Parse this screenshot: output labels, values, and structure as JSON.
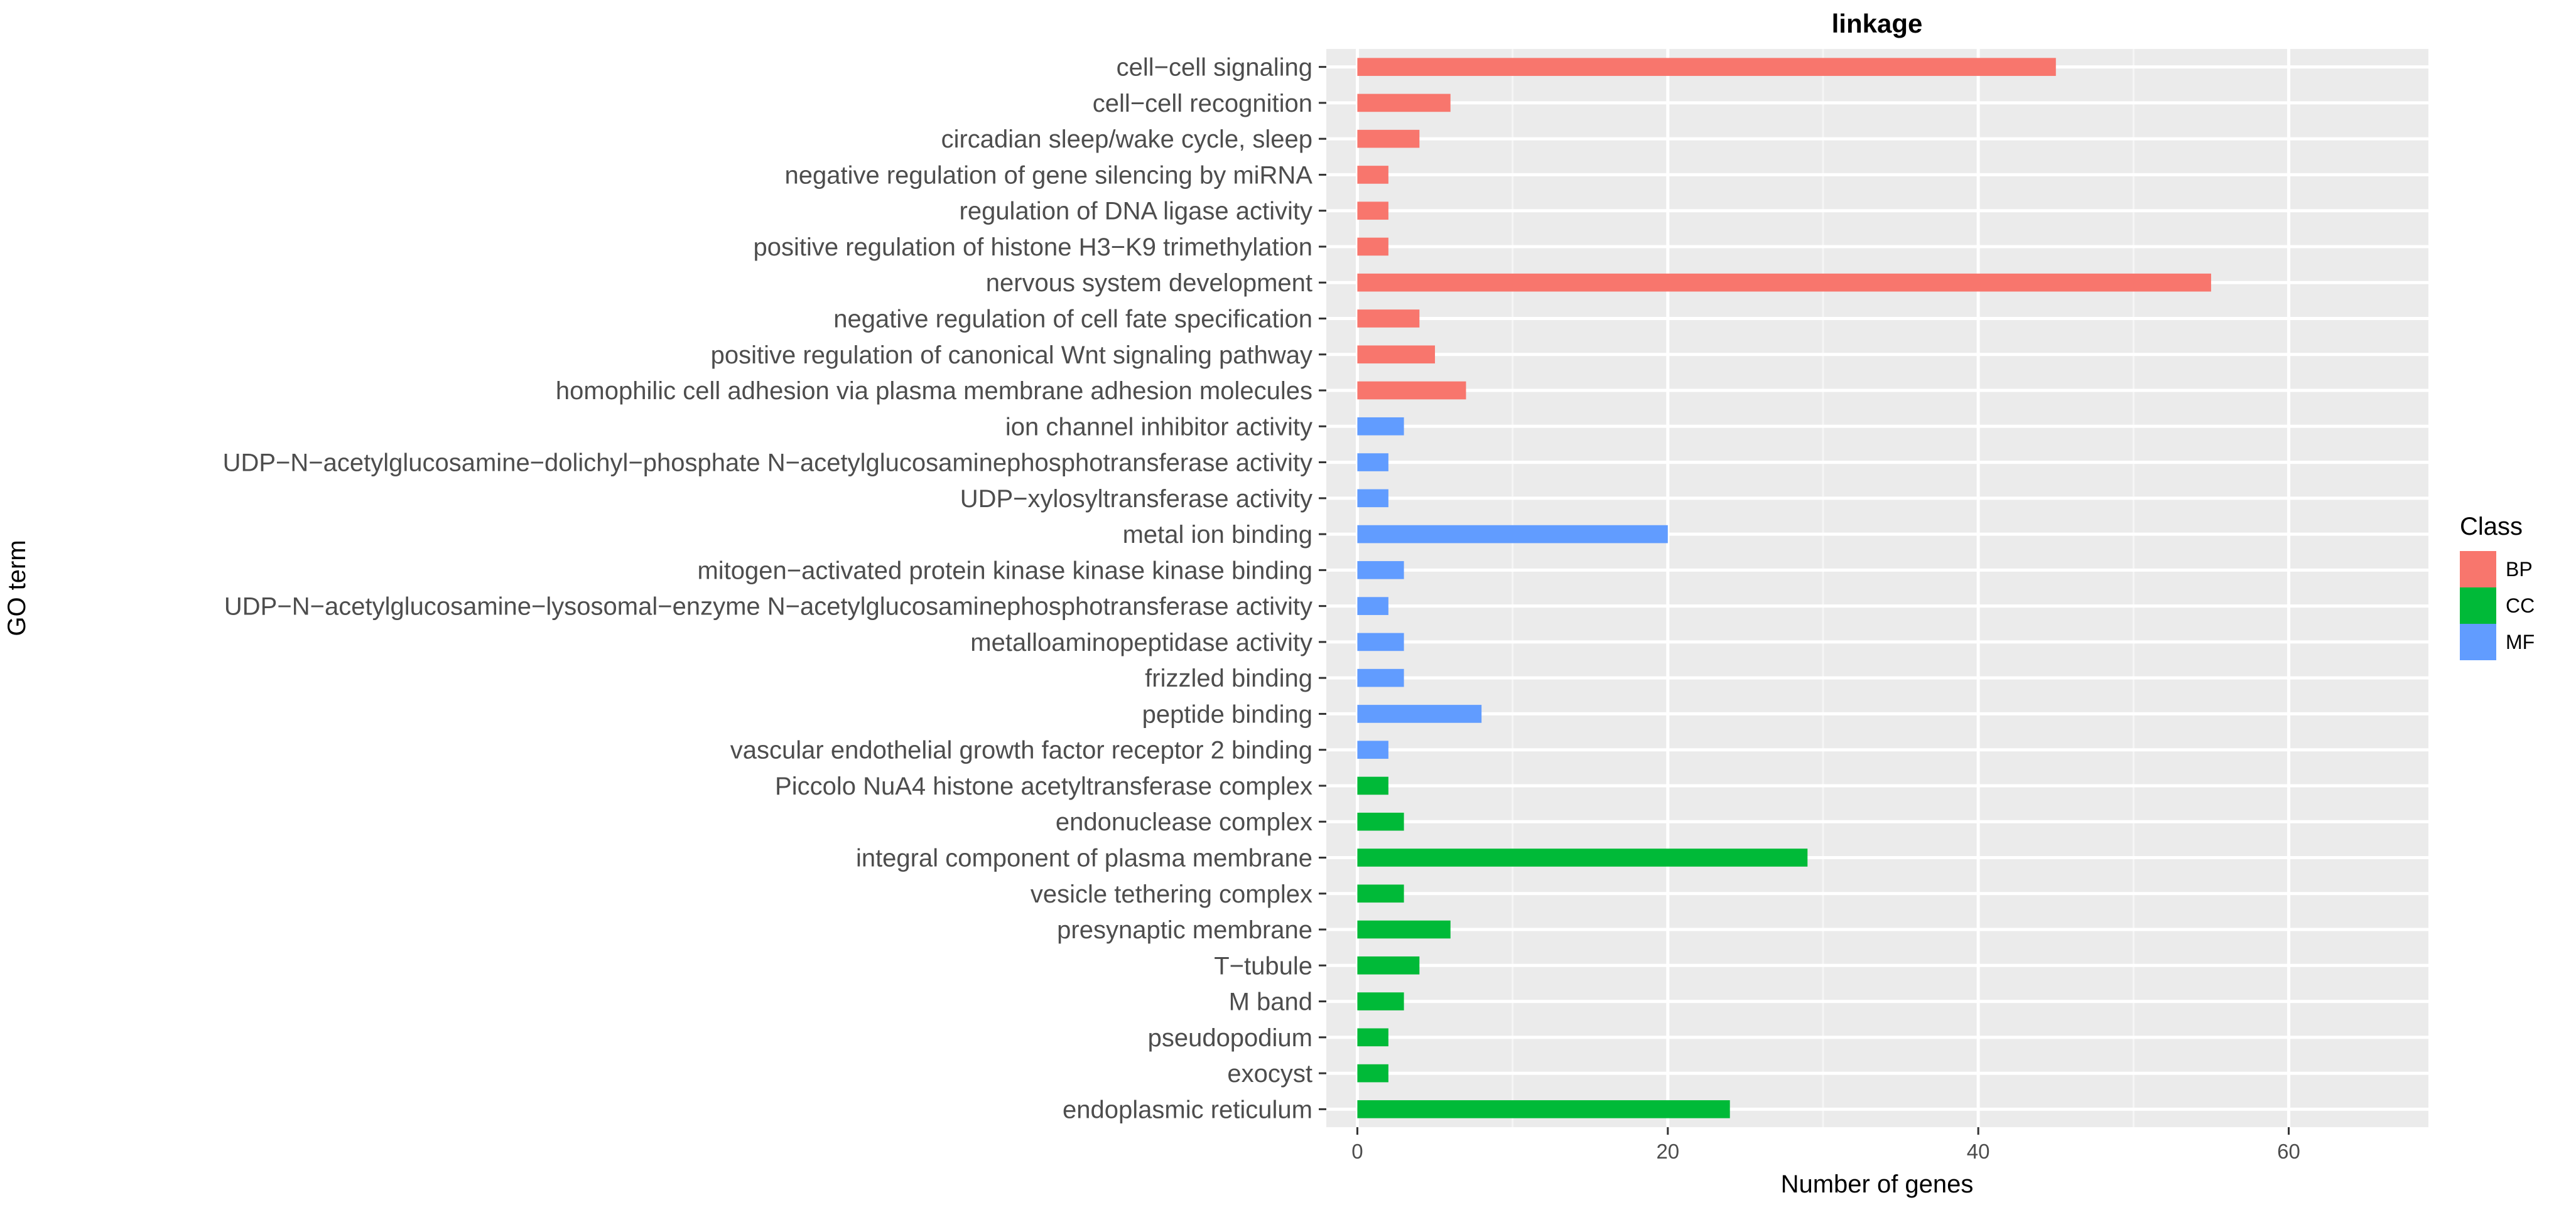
{
  "chart_data": {
    "type": "bar",
    "orientation": "horizontal",
    "title": "linkage",
    "xlabel": "Number of genes",
    "ylabel": "GO term",
    "xlim": [
      -2,
      69
    ],
    "xticks": [
      0,
      20,
      40,
      60
    ],
    "grid": true,
    "legend": {
      "title": "Class",
      "placement": "right",
      "entries": [
        {
          "name": "BP",
          "color": "#F8766D"
        },
        {
          "name": "CC",
          "color": "#00BA38"
        },
        {
          "name": "MF",
          "color": "#619CFF"
        }
      ]
    },
    "categories": [
      {
        "label": "cell−cell signaling",
        "value": 45,
        "class": "BP"
      },
      {
        "label": "cell−cell recognition",
        "value": 6,
        "class": "BP"
      },
      {
        "label": "circadian sleep/wake cycle, sleep",
        "value": 4,
        "class": "BP"
      },
      {
        "label": "negative regulation of gene silencing by miRNA",
        "value": 2,
        "class": "BP"
      },
      {
        "label": "regulation of DNA ligase activity",
        "value": 2,
        "class": "BP"
      },
      {
        "label": "positive regulation of histone H3−K9 trimethylation",
        "value": 2,
        "class": "BP"
      },
      {
        "label": "nervous system development",
        "value": 55,
        "class": "BP"
      },
      {
        "label": "negative regulation of cell fate specification",
        "value": 4,
        "class": "BP"
      },
      {
        "label": "positive regulation of canonical Wnt signaling pathway",
        "value": 5,
        "class": "BP"
      },
      {
        "label": "homophilic cell adhesion via plasma membrane adhesion molecules",
        "value": 7,
        "class": "BP"
      },
      {
        "label": "ion channel inhibitor activity",
        "value": 3,
        "class": "MF"
      },
      {
        "label": "UDP−N−acetylglucosamine−dolichyl−phosphate N−acetylglucosaminephosphotransferase activity",
        "value": 2,
        "class": "MF"
      },
      {
        "label": "UDP−xylosyltransferase activity",
        "value": 2,
        "class": "MF"
      },
      {
        "label": "metal ion binding",
        "value": 20,
        "class": "MF"
      },
      {
        "label": "mitogen−activated protein kinase kinase kinase binding",
        "value": 3,
        "class": "MF"
      },
      {
        "label": "UDP−N−acetylglucosamine−lysosomal−enzyme N−acetylglucosaminephosphotransferase activity",
        "value": 2,
        "class": "MF"
      },
      {
        "label": "metalloaminopeptidase activity",
        "value": 3,
        "class": "MF"
      },
      {
        "label": "frizzled binding",
        "value": 3,
        "class": "MF"
      },
      {
        "label": "peptide binding",
        "value": 8,
        "class": "MF"
      },
      {
        "label": "vascular endothelial growth factor receptor 2 binding",
        "value": 2,
        "class": "MF"
      },
      {
        "label": "Piccolo NuA4 histone acetyltransferase complex",
        "value": 2,
        "class": "CC"
      },
      {
        "label": "endonuclease complex",
        "value": 3,
        "class": "CC"
      },
      {
        "label": "integral component of plasma membrane",
        "value": 29,
        "class": "CC"
      },
      {
        "label": "vesicle tethering complex",
        "value": 3,
        "class": "CC"
      },
      {
        "label": "presynaptic membrane",
        "value": 6,
        "class": "CC"
      },
      {
        "label": "T−tubule",
        "value": 4,
        "class": "CC"
      },
      {
        "label": "M band",
        "value": 3,
        "class": "CC"
      },
      {
        "label": "pseudopodium",
        "value": 2,
        "class": "CC"
      },
      {
        "label": "exocyst",
        "value": 2,
        "class": "CC"
      },
      {
        "label": "endoplasmic reticulum",
        "value": 24,
        "class": "CC"
      }
    ]
  }
}
